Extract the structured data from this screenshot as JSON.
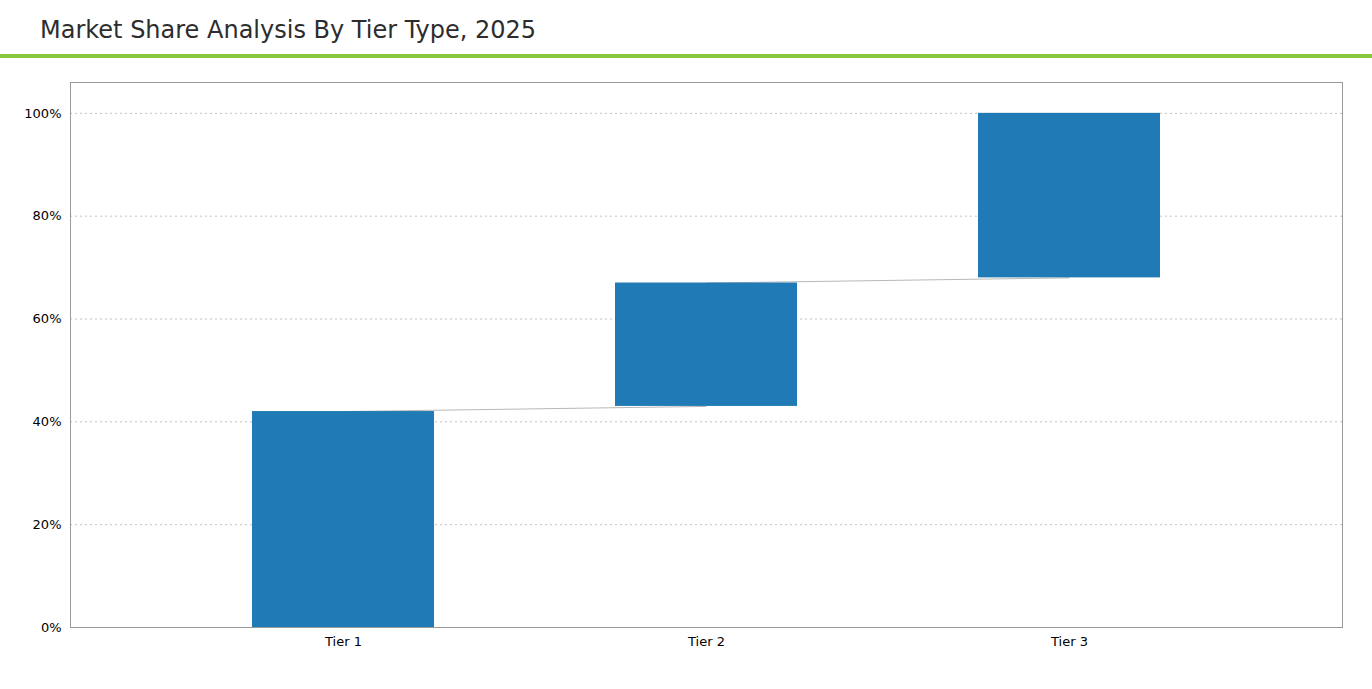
{
  "chart_data": {
    "type": "waterfall",
    "title": "Market Share Analysis By Tier Type, 2025",
    "categories": [
      "Tier 1",
      "Tier 2",
      "Tier 3"
    ],
    "bottoms": [
      0,
      43,
      68
    ],
    "values": [
      42,
      24,
      32
    ],
    "color": "#1f7ab5",
    "ylim": [
      0,
      106
    ],
    "yticks": [
      {
        "value": 0,
        "label": "0%"
      },
      {
        "value": 20,
        "label": "20%"
      },
      {
        "value": 40,
        "label": "40%"
      },
      {
        "value": 60,
        "label": "60%"
      },
      {
        "value": 80,
        "label": "80%"
      },
      {
        "value": 100,
        "label": "100%"
      }
    ],
    "grid": true
  }
}
